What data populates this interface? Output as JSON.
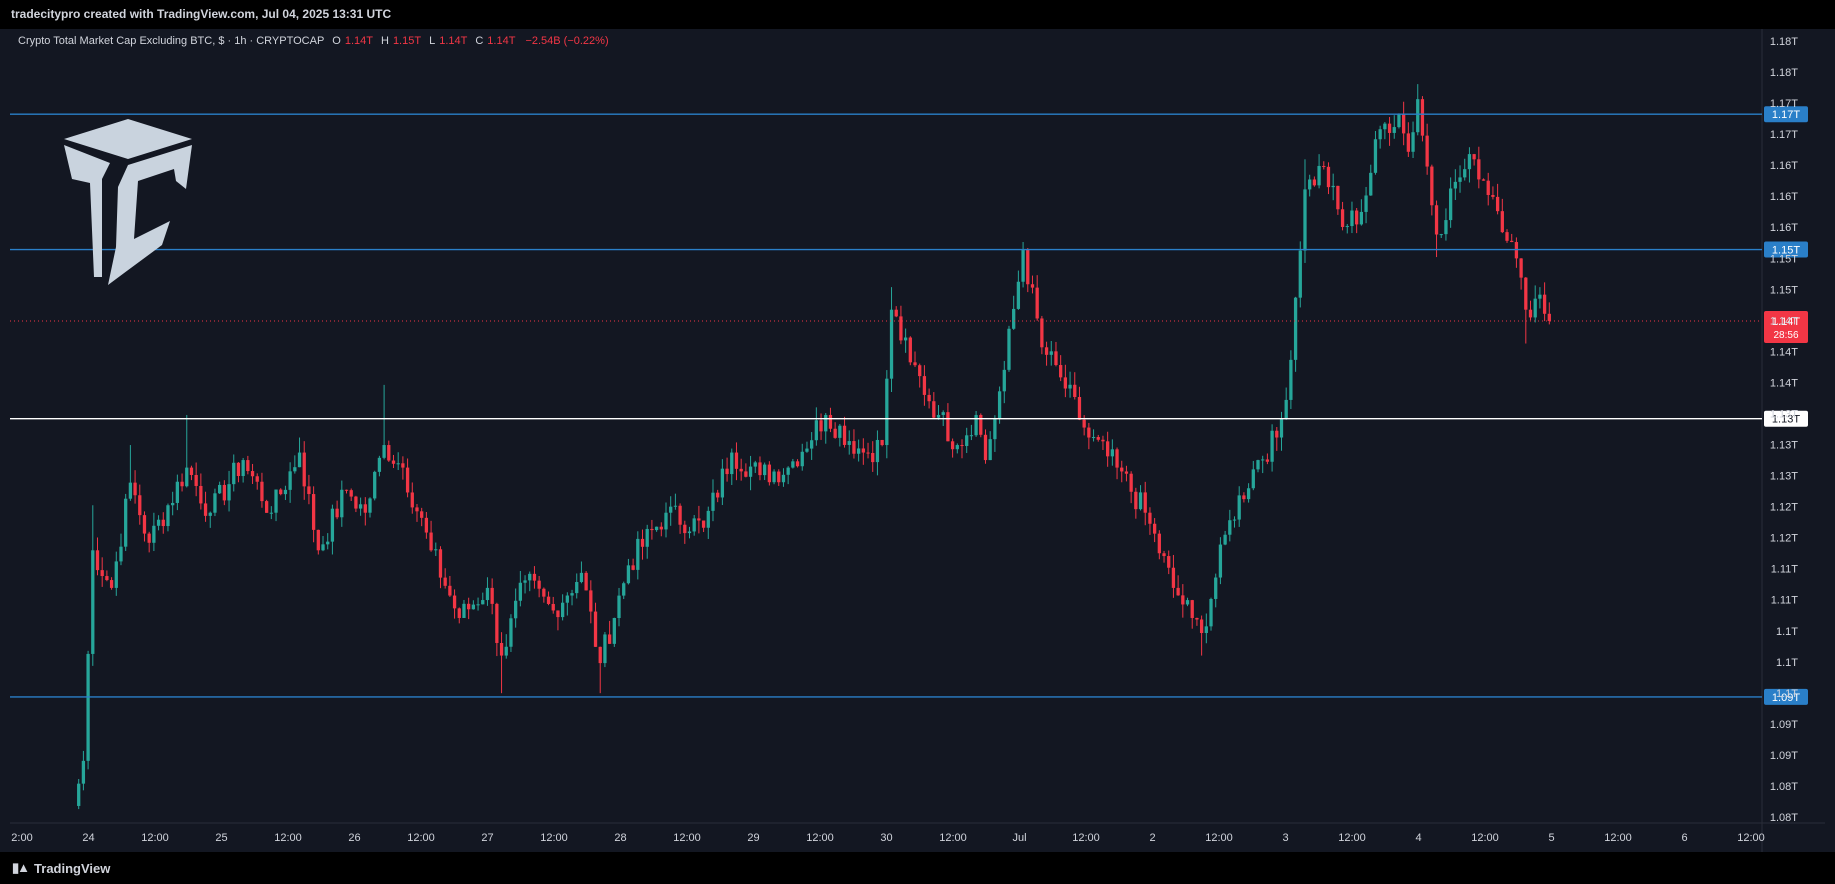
{
  "header": {
    "attribution": "tradecitypro created with TradingView.com, Jul 04, 2025 13:31 UTC"
  },
  "legend": {
    "symbol_line": "Crypto Total Market Cap Excluding BTC, $ · 1h · CRYPTOCAP",
    "open_key": "O",
    "open": "1.14T",
    "high_key": "H",
    "high": "1.15T",
    "low_key": "L",
    "low": "1.14T",
    "close_key": "C",
    "close": "1.14T",
    "change": "−2.54B (−0.22%)"
  },
  "footer": {
    "brand": "TradingView"
  },
  "colors": {
    "background": "#131722",
    "up": "#26a69a",
    "down": "#f23645",
    "hline_blue": "#2a7fc8",
    "hline_white": "#ffffff",
    "last_price": "#f23645"
  },
  "logo": {
    "icon": "tradecity-cube-logo"
  },
  "chart_data": {
    "type": "candlestick",
    "timeframe": "1h",
    "ylim": [
      1.077,
      1.181
    ],
    "y_tick_labels": [
      "1.18T",
      "1.18T",
      "1.17T",
      "1.17T",
      "1.16T",
      "1.16T",
      "1.16T",
      "1.15T",
      "1.15T",
      "1.14T",
      "1.14T",
      "1.14T",
      "1.13T",
      "1.13T",
      "1.13T",
      "1.12T",
      "1.12T",
      "1.11T",
      "1.11T",
      "1.1T",
      "1.1T",
      "1.1T",
      "1.09T",
      "1.09T",
      "1.08T",
      "1.08T"
    ],
    "x_tick_labels": [
      "2:00",
      "24",
      "12:00",
      "25",
      "12:00",
      "26",
      "12:00",
      "27",
      "12:00",
      "28",
      "12:00",
      "29",
      "12:00",
      "30",
      "12:00",
      "Jul",
      "12:00",
      "2",
      "12:00",
      "3",
      "12:00",
      "4",
      "12:00",
      "5",
      "12:00",
      "6",
      "12:00"
    ],
    "horizontal_levels": [
      {
        "value": 1.171,
        "label": "1.17T",
        "color": "blue"
      },
      {
        "value": 1.153,
        "label": "1.15T",
        "color": "blue"
      },
      {
        "value": 1.1305,
        "label": "1.13T",
        "color": "white"
      },
      {
        "value": 1.0935,
        "label": "1.09T",
        "color": "blue"
      }
    ],
    "last_price": {
      "value": 1.1435,
      "label": "1.14T",
      "countdown": "28:56"
    },
    "ohlc_waypoints": [
      {
        "t": 0,
        "close": 1.079,
        "low": 1.078,
        "high": 1.095
      },
      {
        "t": 2,
        "close": 1.085
      },
      {
        "t": 4,
        "close": 1.113,
        "high": 1.119
      },
      {
        "t": 8,
        "close": 1.108
      },
      {
        "t": 12,
        "close": 1.122,
        "high": 1.127
      },
      {
        "t": 16,
        "close": 1.114
      },
      {
        "t": 24,
        "close": 1.124,
        "high": 1.131
      },
      {
        "t": 29,
        "close": 1.118
      },
      {
        "t": 36,
        "close": 1.125
      },
      {
        "t": 42,
        "close": 1.118
      },
      {
        "t": 48,
        "close": 1.126,
        "high": 1.128
      },
      {
        "t": 52,
        "close": 1.113
      },
      {
        "t": 58,
        "close": 1.121
      },
      {
        "t": 62,
        "close": 1.118
      },
      {
        "t": 66,
        "close": 1.127,
        "high": 1.135
      },
      {
        "t": 70,
        "close": 1.124
      },
      {
        "t": 76,
        "close": 1.113
      },
      {
        "t": 82,
        "close": 1.104
      },
      {
        "t": 88,
        "close": 1.108
      },
      {
        "t": 91,
        "close": 1.099,
        "low": 1.094
      },
      {
        "t": 96,
        "close": 1.109
      },
      {
        "t": 102,
        "close": 1.105
      },
      {
        "t": 108,
        "close": 1.11
      },
      {
        "t": 112,
        "close": 1.098,
        "low": 1.094
      },
      {
        "t": 118,
        "close": 1.111
      },
      {
        "t": 126,
        "close": 1.118
      },
      {
        "t": 134,
        "close": 1.116
      },
      {
        "t": 140,
        "close": 1.126
      },
      {
        "t": 146,
        "close": 1.123
      },
      {
        "t": 152,
        "close": 1.124
      },
      {
        "t": 160,
        "close": 1.131
      },
      {
        "t": 168,
        "close": 1.126
      },
      {
        "t": 172,
        "close": 1.127
      },
      {
        "t": 174,
        "close": 1.145,
        "high": 1.148
      },
      {
        "t": 178,
        "close": 1.138
      },
      {
        "t": 184,
        "close": 1.131
      },
      {
        "t": 188,
        "close": 1.127
      },
      {
        "t": 192,
        "close": 1.131
      },
      {
        "t": 194,
        "close": 1.125
      },
      {
        "t": 198,
        "close": 1.137
      },
      {
        "t": 202,
        "close": 1.153,
        "high": 1.154
      },
      {
        "t": 206,
        "close": 1.14
      },
      {
        "t": 210,
        "close": 1.136
      },
      {
        "t": 216,
        "close": 1.128
      },
      {
        "t": 222,
        "close": 1.124
      },
      {
        "t": 228,
        "close": 1.118
      },
      {
        "t": 234,
        "close": 1.108
      },
      {
        "t": 238,
        "close": 1.104
      },
      {
        "t": 240,
        "close": 1.102,
        "low": 1.099
      },
      {
        "t": 246,
        "close": 1.117
      },
      {
        "t": 252,
        "close": 1.125
      },
      {
        "t": 256,
        "close": 1.128
      },
      {
        "t": 258,
        "close": 1.133
      },
      {
        "t": 262,
        "close": 1.161,
        "high": 1.165
      },
      {
        "t": 266,
        "close": 1.164
      },
      {
        "t": 270,
        "close": 1.156
      },
      {
        "t": 274,
        "close": 1.158
      },
      {
        "t": 278,
        "close": 1.169
      },
      {
        "t": 282,
        "close": 1.171
      },
      {
        "t": 284,
        "close": 1.166
      },
      {
        "t": 286,
        "close": 1.173,
        "high": 1.175
      },
      {
        "t": 290,
        "close": 1.155,
        "low": 1.152
      },
      {
        "t": 294,
        "close": 1.162
      },
      {
        "t": 298,
        "close": 1.165
      },
      {
        "t": 302,
        "close": 1.16
      },
      {
        "t": 306,
        "close": 1.154
      },
      {
        "t": 309,
        "close": 1.145,
        "low": 1.1405
      },
      {
        "t": 312,
        "close": 1.147,
        "high": 1.148
      },
      {
        "t": 314,
        "close": 1.1435
      }
    ]
  }
}
